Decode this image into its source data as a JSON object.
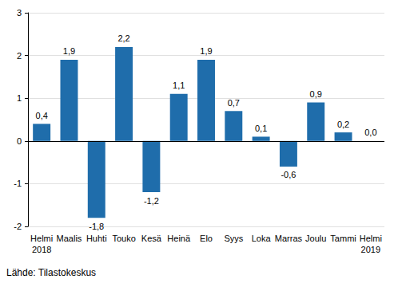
{
  "chart_data": {
    "type": "bar",
    "categories": [
      "Helmi\n2018",
      "Maalis",
      "Huhti",
      "Touko",
      "Kesä",
      "Heinä",
      "Elo",
      "Syys",
      "Loka",
      "Marras",
      "Joulu",
      "Tammi",
      "Helmi\n2019"
    ],
    "values": [
      0.4,
      1.9,
      -1.8,
      2.2,
      -1.2,
      1.1,
      1.9,
      0.7,
      0.1,
      -0.6,
      0.9,
      0.2,
      0.0
    ],
    "value_labels": [
      "0,4",
      "1,9",
      "-1,8",
      "2,2",
      "-1,2",
      "1,1",
      "1,9",
      "0,7",
      "0,1",
      "-0,6",
      "0,9",
      "0,2",
      "0,0"
    ],
    "data_labels": true,
    "color": "#1f6dab",
    "ylim": [
      -2,
      3
    ],
    "yticks": [
      -2,
      -1,
      0,
      1,
      2,
      3
    ],
    "grid": true,
    "annotations": [
      "Lähde: Tilastokeskus"
    ]
  }
}
